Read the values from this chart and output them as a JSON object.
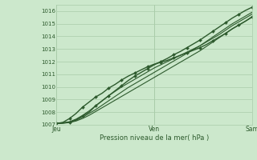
{
  "bg_color": "#cce8cc",
  "grid_color": "#aaccaa",
  "line_color": "#2d5a2d",
  "marker_color": "#2d5a2d",
  "xlabel": "Pression niveau de la mer( hPa )",
  "ylim": [
    1007,
    1016.5
  ],
  "yticks": [
    1007,
    1008,
    1009,
    1010,
    1011,
    1012,
    1013,
    1014,
    1015,
    1016
  ],
  "xtick_labels": [
    "Jeu",
    "Ven",
    "Sam"
  ],
  "xtick_positions": [
    0.0,
    0.5,
    1.0
  ],
  "series": [
    {
      "y": [
        1007.1,
        1007.15,
        1007.2,
        1007.4,
        1007.7,
        1008.0,
        1008.5,
        1008.9,
        1009.3,
        1009.7,
        1010.1,
        1010.5,
        1010.85,
        1011.15,
        1011.45,
        1011.75,
        1012.0,
        1012.25,
        1012.55,
        1012.8,
        1013.1,
        1013.4,
        1013.7,
        1014.05,
        1014.4,
        1014.75,
        1015.1,
        1015.45,
        1015.75,
        1016.05,
        1016.3
      ],
      "marker": true,
      "lw": 1.0
    },
    {
      "y": [
        1007.1,
        1007.2,
        1007.5,
        1007.9,
        1008.4,
        1008.8,
        1009.2,
        1009.5,
        1009.9,
        1010.2,
        1010.55,
        1010.85,
        1011.1,
        1011.35,
        1011.6,
        1011.8,
        1011.95,
        1012.1,
        1012.3,
        1012.5,
        1012.7,
        1012.9,
        1013.1,
        1013.35,
        1013.65,
        1013.95,
        1014.25,
        1014.6,
        1014.9,
        1015.2,
        1015.55
      ],
      "marker": true,
      "lw": 1.0
    },
    {
      "y": [
        1007.1,
        1007.15,
        1007.25,
        1007.45,
        1007.75,
        1008.1,
        1008.5,
        1008.9,
        1009.3,
        1009.65,
        1010.0,
        1010.3,
        1010.6,
        1010.9,
        1011.2,
        1011.5,
        1011.75,
        1012.0,
        1012.25,
        1012.5,
        1012.75,
        1013.0,
        1013.25,
        1013.55,
        1013.85,
        1014.15,
        1014.5,
        1014.85,
        1015.15,
        1015.45,
        1015.75
      ],
      "marker": false,
      "lw": 0.8
    },
    {
      "y": [
        1007.1,
        1007.15,
        1007.2,
        1007.35,
        1007.6,
        1007.9,
        1008.2,
        1008.55,
        1008.9,
        1009.25,
        1009.6,
        1009.95,
        1010.25,
        1010.55,
        1010.85,
        1011.15,
        1011.45,
        1011.75,
        1012.05,
        1012.35,
        1012.65,
        1012.95,
        1013.25,
        1013.6,
        1013.95,
        1014.3,
        1014.65,
        1015.0,
        1015.3,
        1015.6,
        1015.9
      ],
      "marker": false,
      "lw": 0.8
    },
    {
      "y": [
        1007.1,
        1007.12,
        1007.18,
        1007.3,
        1007.5,
        1007.75,
        1008.05,
        1008.35,
        1008.65,
        1008.95,
        1009.25,
        1009.55,
        1009.85,
        1010.15,
        1010.45,
        1010.75,
        1011.05,
        1011.35,
        1011.65,
        1011.95,
        1012.25,
        1012.55,
        1012.85,
        1013.2,
        1013.55,
        1013.9,
        1014.25,
        1014.6,
        1014.9,
        1015.2,
        1015.5
      ],
      "marker": false,
      "lw": 0.8
    }
  ]
}
